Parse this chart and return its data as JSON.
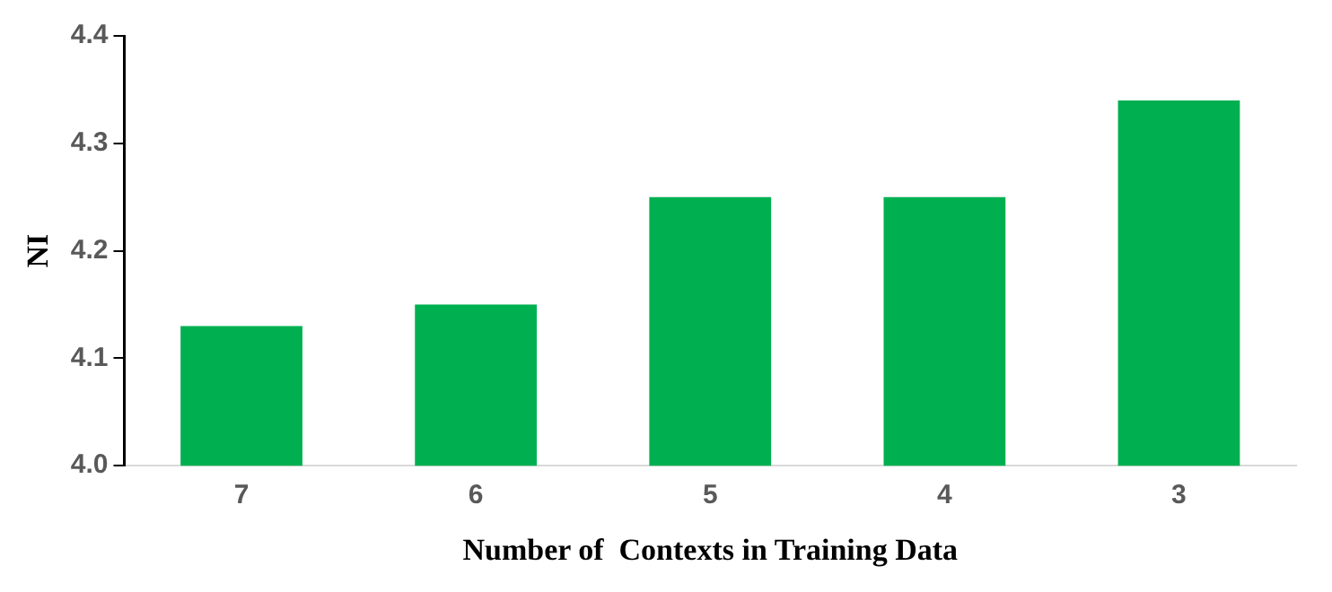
{
  "chart_data": {
    "type": "bar",
    "xlabel": "Number of  Contexts in Training Data",
    "ylabel": "NI",
    "categories": [
      "7",
      "6",
      "5",
      "4",
      "3"
    ],
    "values": [
      4.13,
      4.15,
      4.25,
      4.25,
      4.34
    ],
    "color": "#00b050",
    "ylim": [
      4.0,
      4.4
    ],
    "yticks": [
      {
        "value": 4,
        "label": "4.0"
      },
      {
        "value": 4.1,
        "label": "4.1"
      },
      {
        "value": 4.2,
        "label": "4.2"
      },
      {
        "value": 4.3,
        "label": "4.3"
      },
      {
        "value": 4.4,
        "label": "4.4"
      }
    ],
    "grid": false,
    "legend": false
  }
}
